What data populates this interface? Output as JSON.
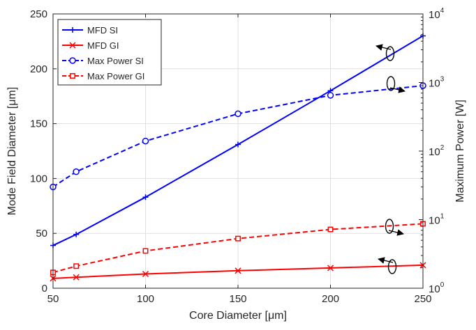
{
  "chart_data": {
    "type": "line",
    "xlabel": "Core Diameter [μm]",
    "ylabel_left": "Mode Field Diameter [μm]",
    "ylabel_right": "Maximum Power [W]",
    "xlim": [
      50,
      250
    ],
    "xticks": [
      "50",
      "100",
      "150",
      "200",
      "250"
    ],
    "ylim_left": [
      0,
      250
    ],
    "yticks_left": [
      "0",
      "50",
      "100",
      "150",
      "200",
      "250"
    ],
    "ylim_right": [
      1,
      10000
    ],
    "yscale_right": "log",
    "yticks_right": [
      {
        "base": "10",
        "exp": "0"
      },
      {
        "base": "10",
        "exp": "1"
      },
      {
        "base": "10",
        "exp": "2"
      },
      {
        "base": "10",
        "exp": "3"
      },
      {
        "base": "10",
        "exp": "4"
      }
    ],
    "grid": true,
    "legend_position": "top-left",
    "series": [
      {
        "name": "MFD SI",
        "axis": "left",
        "color": "#0000FF",
        "linestyle": "solid",
        "marker": "plus",
        "x": [
          50,
          62.5,
          100,
          150,
          200,
          250
        ],
        "y": [
          39,
          49,
          83,
          131,
          180,
          230
        ]
      },
      {
        "name": "MFD GI",
        "axis": "left",
        "color": "#FF0000",
        "linestyle": "solid",
        "marker": "x",
        "x": [
          50,
          62.5,
          100,
          150,
          200,
          250
        ],
        "y": [
          9,
          10,
          13,
          16,
          18.5,
          21
        ]
      },
      {
        "name": "Max Power SI",
        "axis": "right",
        "color": "#0000FF",
        "linestyle": "dashed",
        "marker": "circle",
        "x": [
          50,
          62.5,
          100,
          150,
          200,
          250
        ],
        "y": [
          30,
          50,
          140,
          350,
          650,
          900
        ]
      },
      {
        "name": "Max Power GI",
        "axis": "right",
        "color": "#FF0000",
        "linestyle": "dashed",
        "marker": "square",
        "x": [
          50,
          62.5,
          100,
          150,
          200,
          250
        ],
        "y": [
          1.7,
          2.1,
          3.5,
          5.3,
          7.2,
          8.7
        ]
      }
    ]
  }
}
